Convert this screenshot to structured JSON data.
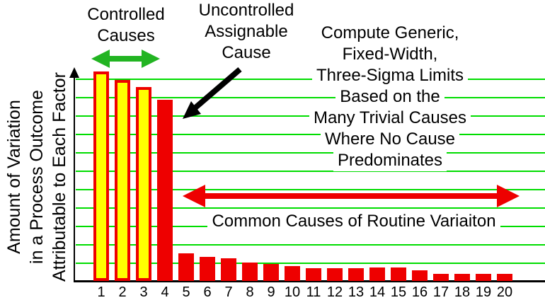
{
  "chart_data": {
    "type": "bar",
    "title": "",
    "xlabel": "",
    "ylabel": "Amount of Variation in a Process Outcome Attributable to Each Factor",
    "ylabel_lines": [
      "Amount of Variation",
      "in a Process Outcome",
      "Attributable to Each Factor"
    ],
    "categories": [
      "1",
      "2",
      "3",
      "4",
      "5",
      "6",
      "7",
      "8",
      "9",
      "10",
      "11",
      "12",
      "13",
      "14",
      "15",
      "16",
      "17",
      "18",
      "19",
      "20"
    ],
    "values": [
      100,
      96,
      92.5,
      86.5,
      13.2,
      11.5,
      10.8,
      8.8,
      8.1,
      7.1,
      6.1,
      6.1,
      6.1,
      6.4,
      6.4,
      5.1,
      3.4,
      3.4,
      3.4,
      3.4
    ],
    "ylim": [
      0,
      105
    ],
    "grid": "horizontal",
    "gridline_count": 11,
    "legend": "none",
    "controlled_indices": [
      0,
      1,
      2
    ],
    "annotations": {
      "controlled_causes": {
        "lines": [
          "Controlled",
          "Causes"
        ],
        "arrow": "green double-headed arrow spanning bars 1-3"
      },
      "uncontrolled_cause": {
        "lines": [
          "Uncontrolled",
          "Assignable",
          "Cause"
        ],
        "arrow": "black arrow pointing to bar 4"
      },
      "three_sigma_note": {
        "lines": [
          "Compute Generic,",
          "Fixed-Width,",
          "Three-Sigma Limits",
          "Based on the",
          "Many Trivial Causes",
          "Where No Cause",
          "Predominates"
        ]
      },
      "common_causes": {
        "text": "Common Causes of Routine Variaiton",
        "arrow": "red double-headed arrow spanning bars 5-20"
      }
    },
    "colors": {
      "background": "#FFFFFF",
      "bar_fill": "#EE0000",
      "controlled_bar_fill": "#FFFF00",
      "controlled_bar_border": "#EE0000",
      "gridline": "#00DD00",
      "green_arrow": "#22B422",
      "red_arrow": "#EE0000",
      "black_arrow": "#000000",
      "axis": "#000000",
      "text": "#000000"
    }
  }
}
